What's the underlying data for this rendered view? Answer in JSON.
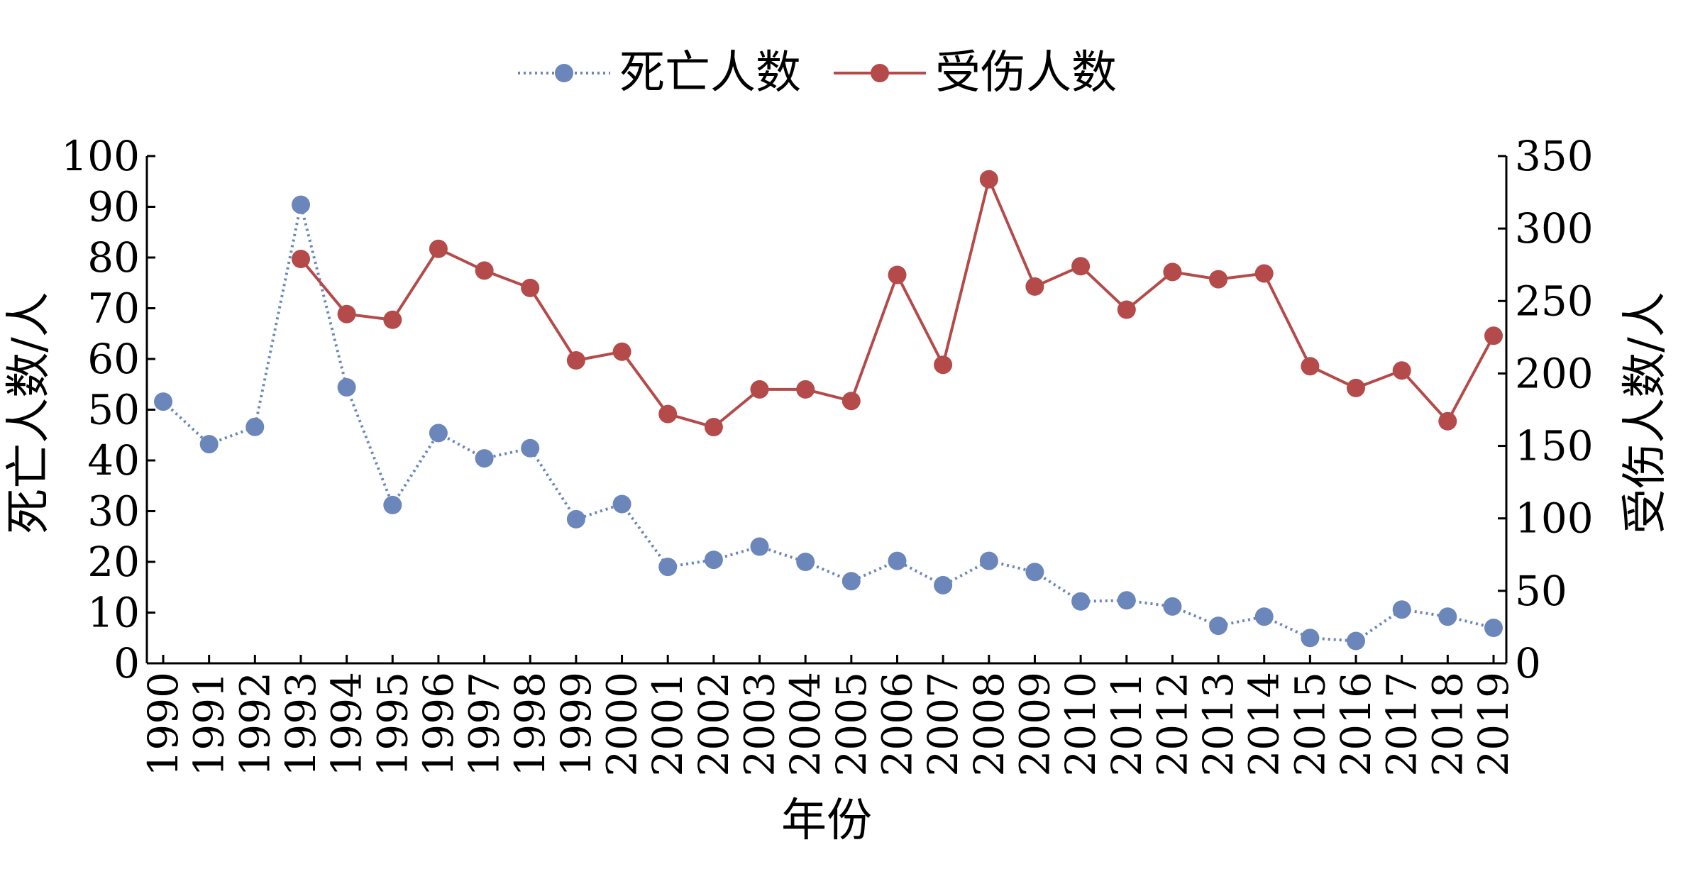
{
  "chart_data": {
    "type": "line",
    "x": [
      "1990",
      "1991",
      "1992",
      "1993",
      "1994",
      "1995",
      "1996",
      "1997",
      "1998",
      "1999",
      "2000",
      "2001",
      "2002",
      "2003",
      "2004",
      "2005",
      "2006",
      "2007",
      "2008",
      "2009",
      "2010",
      "2011",
      "2012",
      "2013",
      "2014",
      "2015",
      "2016",
      "2017",
      "2018",
      "2019"
    ],
    "xlabel": "年份",
    "series": [
      {
        "name": "死亡人数",
        "axis": "left",
        "color": "#6b86bb",
        "line_style": "dotted",
        "marker": "circle",
        "values": [
          51.6,
          43.2,
          46.6,
          90.4,
          54.4,
          31.2,
          45.4,
          40.4,
          42.4,
          28.4,
          31.4,
          19.0,
          20.4,
          23.0,
          20.0,
          16.2,
          20.2,
          15.4,
          20.2,
          18.0,
          12.2,
          12.4,
          11.2,
          7.4,
          9.2,
          5.0,
          4.4,
          10.6,
          9.2,
          7.0
        ]
      },
      {
        "name": "受伤人数",
        "axis": "right",
        "color": "#b44a4a",
        "line_style": "solid",
        "marker": "circle",
        "values": [
          null,
          null,
          null,
          279,
          241,
          237,
          286,
          271,
          259,
          209,
          215,
          172,
          163,
          189,
          189,
          181,
          268,
          206,
          334,
          260,
          274,
          244,
          270,
          265,
          269,
          205,
          190,
          202,
          167,
          226
        ]
      }
    ],
    "y_left": {
      "label": "死亡人数/人",
      "ylim": [
        0,
        100
      ],
      "ticks": [
        "0",
        "10",
        "20",
        "30",
        "40",
        "50",
        "60",
        "70",
        "80",
        "90",
        "100"
      ]
    },
    "y_right": {
      "label": "受伤人数/人",
      "ylim": [
        0,
        350
      ],
      "ticks": [
        "0",
        "50",
        "100",
        "150",
        "200",
        "250",
        "300",
        "350"
      ]
    },
    "legend": {
      "placement": "top-center",
      "entries": [
        "死亡人数",
        "受伤人数"
      ]
    },
    "grid": false
  }
}
